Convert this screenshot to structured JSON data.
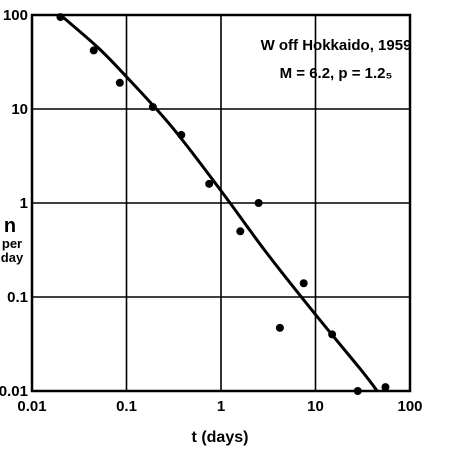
{
  "chart_data": {
    "type": "scatter",
    "x_scale": "log",
    "y_scale": "log",
    "xlim": [
      0.01,
      100
    ],
    "ylim": [
      0.01,
      100
    ],
    "grid": true,
    "xlabel": "t (days)",
    "ylabel_main": "n",
    "ylabel_sub1": "per",
    "ylabel_sub2": "day",
    "x_ticks": [
      "0.01",
      "0.1",
      "1",
      "10",
      "100"
    ],
    "y_ticks": [
      "0.01",
      "0.1",
      "1",
      "10",
      "100"
    ],
    "annotation_line1": "W off Hokkaido, 1959",
    "annotation_line2": "M = 6.2,  p = 1.2₅",
    "points": [
      {
        "x": 0.02,
        "y": 95
      },
      {
        "x": 0.045,
        "y": 42
      },
      {
        "x": 0.085,
        "y": 19
      },
      {
        "x": 0.19,
        "y": 10.5
      },
      {
        "x": 0.38,
        "y": 5.3
      },
      {
        "x": 0.75,
        "y": 1.6
      },
      {
        "x": 1.6,
        "y": 0.5
      },
      {
        "x": 2.5,
        "y": 1.0
      },
      {
        "x": 4.2,
        "y": 0.047
      },
      {
        "x": 7.5,
        "y": 0.14
      },
      {
        "x": 15,
        "y": 0.04
      },
      {
        "x": 28,
        "y": 0.01
      },
      {
        "x": 55,
        "y": 0.011
      }
    ],
    "fit_curve": [
      {
        "x": 0.02,
        "y": 100
      },
      {
        "x": 0.05,
        "y": 45
      },
      {
        "x": 0.1,
        "y": 22
      },
      {
        "x": 0.3,
        "y": 6.5
      },
      {
        "x": 1,
        "y": 1.35
      },
      {
        "x": 3,
        "y": 0.3
      },
      {
        "x": 10,
        "y": 0.065
      },
      {
        "x": 30,
        "y": 0.017
      },
      {
        "x": 45,
        "y": 0.01
      }
    ]
  }
}
